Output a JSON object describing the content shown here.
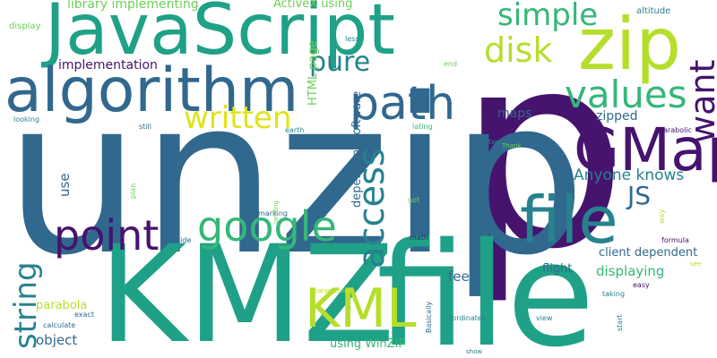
{
  "palette": {
    "dark_purple": "#46136e",
    "indigo": "#3b528b",
    "blue": "#31688e",
    "teal": "#26828e",
    "green_teal": "#1fa187",
    "green": "#35b779",
    "light_green": "#6ece58",
    "yellow_green": "#b5de2b",
    "yellow": "#e0e31b"
  },
  "words": [
    {
      "text": "p",
      "color": "#46136e"
    },
    {
      "text": "unzip",
      "color": "#31688e"
    },
    {
      "text": "KMZ",
      "color": "#1fa187"
    },
    {
      "text": "file",
      "color": "#1fa187"
    },
    {
      "text": "JavaScript",
      "color": "#1fa187"
    },
    {
      "text": "algorithm",
      "color": "#31688e"
    },
    {
      "text": "GMap",
      "color": "#46136e"
    },
    {
      "text": "zip",
      "color": "#b5de2b"
    },
    {
      "text": "file",
      "color": "#26828e"
    },
    {
      "text": "KML",
      "color": "#b5de2b"
    },
    {
      "text": "path",
      "color": "#31688e"
    },
    {
      "text": "values",
      "color": "#35b779"
    },
    {
      "text": "google",
      "color": "#35b779"
    },
    {
      "text": "point",
      "color": "#46136e"
    },
    {
      "text": "access",
      "color": "#26828e"
    },
    {
      "text": "want",
      "color": "#46136e"
    },
    {
      "text": "string",
      "color": "#26828e"
    },
    {
      "text": "written",
      "color": "#e0e31b"
    },
    {
      "text": "disk",
      "color": "#b5de2b"
    },
    {
      "text": "simple",
      "color": "#35b779"
    },
    {
      "text": "pure",
      "color": "#26828e"
    },
    {
      "text": "JS",
      "color": "#31688e"
    },
    {
      "text": "Anyone knows",
      "color": "#26828e"
    },
    {
      "text": "library implementing",
      "color": "#6ece58"
    },
    {
      "text": "implementation",
      "color": "#46136e"
    },
    {
      "text": "ActiveX using",
      "color": "#6ece58"
    },
    {
      "text": "HTML page",
      "color": "#6ece58"
    },
    {
      "text": "dependent software",
      "color": "#31688e"
    },
    {
      "text": "client dependent",
      "color": "#31688e"
    },
    {
      "text": "displaying",
      "color": "#35b779"
    },
    {
      "text": "zipped",
      "color": "#31688e"
    },
    {
      "text": "maps",
      "color": "#31688e"
    },
    {
      "text": "feed",
      "color": "#31688e"
    },
    {
      "text": "use",
      "color": "#31688e"
    },
    {
      "text": "object",
      "color": "#31688e"
    },
    {
      "text": "using WinZIP",
      "color": "#35b779"
    },
    {
      "text": "parabola",
      "color": "#b5de2b"
    },
    {
      "text": "flight",
      "color": "#31688e"
    },
    {
      "text": "display",
      "color": "#6ece58"
    },
    {
      "text": "altitude",
      "color": "#26828e"
    },
    {
      "text": "less",
      "color": "#26828e"
    },
    {
      "text": "end",
      "color": "#6ece58"
    },
    {
      "text": "looking",
      "color": "#26828e"
    },
    {
      "text": "still",
      "color": "#31688e"
    },
    {
      "text": "earth",
      "color": "#26828e"
    },
    {
      "text": "latlng",
      "color": "#35b779"
    },
    {
      "text": "parabolic",
      "color": "#46136e"
    },
    {
      "text": "two",
      "color": "#26828e"
    },
    {
      "text": "Thank",
      "color": "#6ece58"
    },
    {
      "text": "plan",
      "color": "#6ece58"
    },
    {
      "text": "marking",
      "color": "#31688e"
    },
    {
      "text": "landing",
      "color": "#6ece58"
    },
    {
      "text": "got",
      "color": "#6ece58"
    },
    {
      "text": "side",
      "color": "#31688e"
    },
    {
      "text": "math",
      "color": "#46136e"
    },
    {
      "text": "formula",
      "color": "#46136e"
    },
    {
      "text": "way",
      "color": "#b5de2b"
    },
    {
      "text": "see",
      "color": "#b5de2b"
    },
    {
      "text": "easy",
      "color": "#46136e"
    },
    {
      "text": "taking",
      "color": "#26828e"
    },
    {
      "text": "parameter",
      "color": "#b5de2b"
    },
    {
      "text": "exact",
      "color": "#31688e"
    },
    {
      "text": "calculate",
      "color": "#31688e"
    },
    {
      "text": "Basically",
      "color": "#31688e"
    },
    {
      "text": "cordinates",
      "color": "#26828e"
    },
    {
      "text": "view",
      "color": "#26828e"
    },
    {
      "text": "start",
      "color": "#26828e"
    },
    {
      "text": "show",
      "color": "#26828e"
    }
  ]
}
